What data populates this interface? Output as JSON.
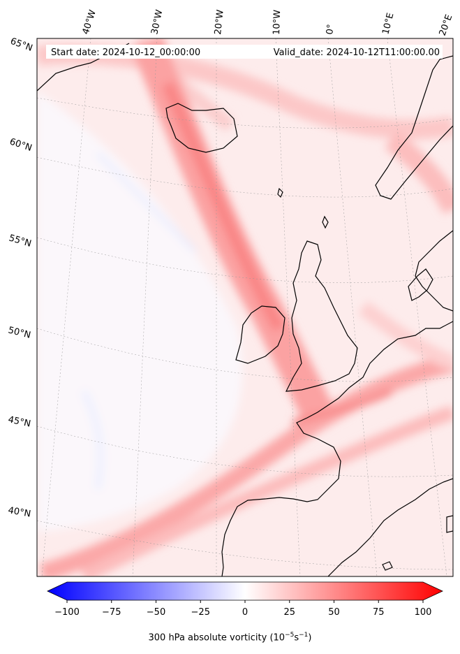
{
  "map": {
    "start_label": "Start date: 2024-10-12_00:00:00",
    "valid_label": "Valid_date: 2024-10-12T11:00:00.00",
    "lon_labels": [
      "40°W",
      "30°W",
      "20°W",
      "10°W",
      "0°",
      "10°E",
      "20°E"
    ],
    "lat_labels": [
      "65°N",
      "60°N",
      "55°N",
      "50°N",
      "45°N",
      "40°N"
    ]
  },
  "colorbar": {
    "ticks": [
      "−100",
      "−75",
      "−50",
      "−25",
      "0",
      "25",
      "50",
      "75",
      "100"
    ],
    "min": -100,
    "max": 100,
    "label_main": "300 hPa absolute vorticity (10",
    "label_exp1": "−5",
    "label_mid": "s",
    "label_exp2": "−1",
    "label_end": ")",
    "colors": {
      "negative": "#0000ff",
      "zero": "#ffffff",
      "positive": "#ff0000"
    }
  },
  "colors": {
    "coastline": "#000000",
    "gridline": "#999999",
    "frame": "#000000"
  }
}
